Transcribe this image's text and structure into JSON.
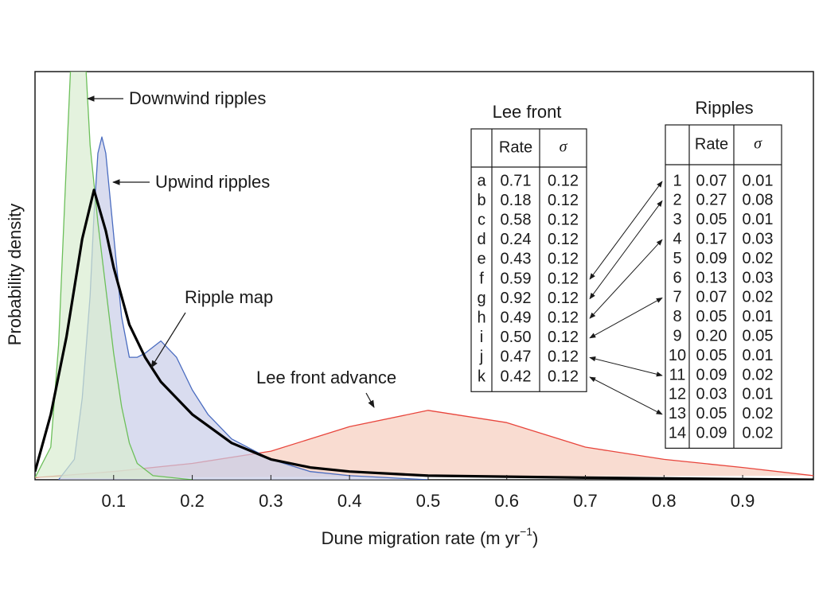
{
  "chart_data": {
    "type": "line",
    "y_label": "Probability density",
    "x_label": "Dune migration rate (m yr",
    "x_label_sup": "−1",
    "x_label_end": ")",
    "xlim": [
      0,
      0.99
    ],
    "xticks": [
      0.1,
      0.2,
      0.3,
      0.4,
      0.5,
      0.6,
      0.7,
      0.8,
      0.9
    ],
    "ylim": [
      0,
      1
    ],
    "series": [
      {
        "name": "Lee front advance",
        "color": "#e8453c",
        "fill": "#f6cdbd",
        "x": [
          0,
          0.1,
          0.2,
          0.3,
          0.4,
          0.5,
          0.6,
          0.7,
          0.8,
          0.9,
          0.99
        ],
        "values": [
          0.005,
          0.02,
          0.04,
          0.07,
          0.13,
          0.17,
          0.14,
          0.08,
          0.05,
          0.03,
          0.01
        ]
      },
      {
        "name": "Upwind ripples",
        "color": "#4a6cc0",
        "fill": "#c9cde8",
        "x": [
          0.03,
          0.05,
          0.06,
          0.07,
          0.075,
          0.08,
          0.085,
          0.09,
          0.1,
          0.11,
          0.12,
          0.13,
          0.14,
          0.16,
          0.18,
          0.2,
          0.22,
          0.25,
          0.3,
          0.35,
          0.4,
          0.5
        ],
        "values": [
          0,
          0.05,
          0.2,
          0.45,
          0.65,
          0.8,
          0.84,
          0.8,
          0.6,
          0.4,
          0.3,
          0.3,
          0.31,
          0.34,
          0.3,
          0.22,
          0.16,
          0.1,
          0.05,
          0.02,
          0.01,
          0
        ]
      },
      {
        "name": "Downwind ripples",
        "color": "#6cbf5a",
        "fill": "#d8ecd0",
        "x": [
          0,
          0.02,
          0.03,
          0.04,
          0.045,
          0.055,
          0.065,
          0.07,
          0.08,
          0.09,
          0.1,
          0.11,
          0.12,
          0.13,
          0.15,
          0.2
        ],
        "values": [
          0.005,
          0.08,
          0.33,
          0.78,
          1,
          1.3,
          1,
          0.82,
          0.63,
          0.47,
          0.31,
          0.18,
          0.09,
          0.04,
          0.01,
          0
        ]
      },
      {
        "name": "Ripple map",
        "color": "#000000",
        "x": [
          0,
          0.02,
          0.04,
          0.06,
          0.075,
          0.09,
          0.1,
          0.12,
          0.14,
          0.16,
          0.2,
          0.25,
          0.3,
          0.35,
          0.4,
          0.5,
          0.7,
          0.99
        ],
        "values": [
          0.02,
          0.16,
          0.35,
          0.59,
          0.71,
          0.61,
          0.52,
          0.38,
          0.3,
          0.24,
          0.16,
          0.09,
          0.05,
          0.03,
          0.02,
          0.01,
          0.005,
          0
        ]
      }
    ],
    "lee_front_table": {
      "title": "Lee front",
      "columns": [
        "Rate",
        "σ"
      ],
      "rows": [
        [
          "a",
          "0.71",
          "0.12"
        ],
        [
          "b",
          "0.18",
          "0.12"
        ],
        [
          "c",
          "0.58",
          "0.12"
        ],
        [
          "d",
          "0.24",
          "0.12"
        ],
        [
          "e",
          "0.43",
          "0.12"
        ],
        [
          "f",
          "0.59",
          "0.12"
        ],
        [
          "g",
          "0.92",
          "0.12"
        ],
        [
          "h",
          "0.49",
          "0.12"
        ],
        [
          "i",
          "0.50",
          "0.12"
        ],
        [
          "j",
          "0.47",
          "0.12"
        ],
        [
          "k",
          "0.42",
          "0.12"
        ]
      ]
    },
    "ripples_table": {
      "title": "Ripples",
      "columns": [
        "Rate",
        "σ"
      ],
      "rows": [
        [
          "1",
          "0.07",
          "0.01"
        ],
        [
          "2",
          "0.27",
          "0.08"
        ],
        [
          "3",
          "0.05",
          "0.01"
        ],
        [
          "4",
          "0.17",
          "0.03"
        ],
        [
          "5",
          "0.09",
          "0.02"
        ],
        [
          "6",
          "0.13",
          "0.03"
        ],
        [
          "7",
          "0.07",
          "0.02"
        ],
        [
          "8",
          "0.05",
          "0.01"
        ],
        [
          "9",
          "0.20",
          "0.05"
        ],
        [
          "10",
          "0.05",
          "0.01"
        ],
        [
          "11",
          "0.09",
          "0.02"
        ],
        [
          "12",
          "0.03",
          "0.01"
        ],
        [
          "13",
          "0.05",
          "0.02"
        ],
        [
          "14",
          "0.09",
          "0.02"
        ]
      ]
    }
  }
}
